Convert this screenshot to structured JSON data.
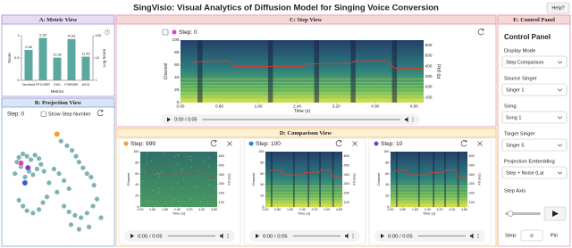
{
  "header": {
    "title": "SingVisio: Visual Analytics of Diffusion Model for Singing Voice Conversion",
    "help": "Help?"
  },
  "metric_view": {
    "title": "A: Metric View",
    "info": "?"
  },
  "chart_data": {
    "type": "bar",
    "xlabel": "Metrics",
    "ylabel": "Score",
    "y2label": "Log Score",
    "categories": [
      "Dembed",
      "FPCORR",
      "FAD",
      "F0RMSE",
      "MCD"
    ],
    "series": [
      {
        "color": "#5ba8a0",
        "values": [
          0.68,
          0.95,
          null,
          null,
          null
        ]
      },
      {
        "color": "#5ba8a0",
        "axis": "y2",
        "values": [
          null,
          null,
          10.36,
          70.81,
          11.45
        ]
      }
    ],
    "ylim": [
      0,
      1
    ],
    "yticks": [
      0,
      0.5,
      1
    ],
    "y2lim": [
      1,
      100
    ],
    "y2scale": "log",
    "y2ticks": [
      1,
      10,
      100
    ]
  },
  "projection_view": {
    "title": "B: Projection View",
    "step_label": "Step: 0",
    "checkbox_label": "Show Step Number",
    "xlim": [
      0,
      100
    ],
    "ylim": [
      0,
      100
    ],
    "point_color": "#6aa5a5",
    "points": [
      [
        10,
        72
      ],
      [
        14,
        75
      ],
      [
        18,
        73
      ],
      [
        22,
        70
      ],
      [
        8,
        68
      ],
      [
        26,
        74
      ],
      [
        30,
        71
      ],
      [
        12,
        64
      ],
      [
        20,
        60
      ],
      [
        24,
        57
      ],
      [
        28,
        62
      ],
      [
        32,
        66
      ],
      [
        6,
        58
      ],
      [
        16,
        55
      ],
      [
        35,
        60
      ],
      [
        52,
        86
      ],
      [
        58,
        82
      ],
      [
        63,
        78
      ],
      [
        67,
        73
      ],
      [
        70,
        68
      ],
      [
        74,
        63
      ],
      [
        78,
        58
      ],
      [
        82,
        55
      ],
      [
        85,
        48
      ],
      [
        45,
        62
      ],
      [
        50,
        58
      ],
      [
        40,
        50
      ],
      [
        55,
        52
      ],
      [
        60,
        45
      ],
      [
        48,
        42
      ],
      [
        10,
        35
      ],
      [
        14,
        30
      ],
      [
        18,
        26
      ],
      [
        24,
        24
      ],
      [
        30,
        27
      ],
      [
        34,
        33
      ],
      [
        38,
        38
      ],
      [
        55,
        30
      ],
      [
        60,
        25
      ],
      [
        66,
        22
      ],
      [
        72,
        20
      ],
      [
        78,
        24
      ],
      [
        84,
        30
      ],
      [
        88,
        36
      ],
      [
        80,
        12
      ],
      [
        70,
        10
      ],
      [
        62,
        14
      ],
      [
        92,
        20
      ]
    ],
    "highlights": [
      {
        "x": 48,
        "y": 92,
        "color": "#f0a030"
      },
      {
        "x": 12,
        "y": 67,
        "color": "#e040c0"
      },
      {
        "x": 19,
        "y": 63,
        "color": "#7b3fd0"
      },
      {
        "x": 16,
        "y": 50,
        "color": "#3a5bd5"
      }
    ]
  },
  "step_view": {
    "title": "C: Step View",
    "step_label": "Step: 0",
    "step_color": "#e040c0",
    "audio_time": "0:00 / 0:05"
  },
  "spectrogram_axes": {
    "xlabel": "Time (s)",
    "ylabel": "Channel",
    "y2label": "F0 (Hz)",
    "xlim": [
      0,
      5
    ],
    "xticks": [
      {
        "value": 0,
        "label": "0.00"
      },
      {
        "value": 0.8,
        "label": "0.80"
      },
      {
        "value": 1.6,
        "label": "1.60"
      },
      {
        "value": 2.4,
        "label": "2.40"
      },
      {
        "value": 3.2,
        "label": "3.20"
      },
      {
        "value": 4,
        "label": "4.00"
      },
      {
        "value": 4.8,
        "label": "4.80"
      }
    ],
    "ylim": [
      0,
      100
    ],
    "yticks": [
      0,
      20,
      40,
      60,
      80,
      100
    ],
    "y2lim": [
      50,
      650
    ],
    "y2ticks": [
      100,
      200,
      300,
      400,
      500,
      600
    ]
  },
  "comparison_view": {
    "title": "D: Comparison View",
    "cards": [
      {
        "step_label": "Step: 999",
        "color": "#f0a030"
      },
      {
        "step_label": "Step: 100",
        "color": "#3a7bd5"
      },
      {
        "step_label": "Step: 10",
        "color": "#7b3fd0"
      }
    ],
    "audio_time": "0:00 / 0:05"
  },
  "control_panel": {
    "title": "E: Control Panel",
    "heading": "Control Panel",
    "fields": [
      {
        "label": "Display Mode",
        "value": "Step Comparison"
      },
      {
        "label": "Source Singer",
        "value": "Singer 1"
      },
      {
        "label": "Song",
        "value": "Song 1"
      },
      {
        "label": "Target Singer",
        "value": "Singer 5"
      },
      {
        "label": "Projection Embedding",
        "value": "Step + Noise (Lar"
      }
    ],
    "step_axis_label": "Step Axis",
    "step_field_label": "Step:",
    "step_value": "0",
    "pin": "Pin"
  }
}
